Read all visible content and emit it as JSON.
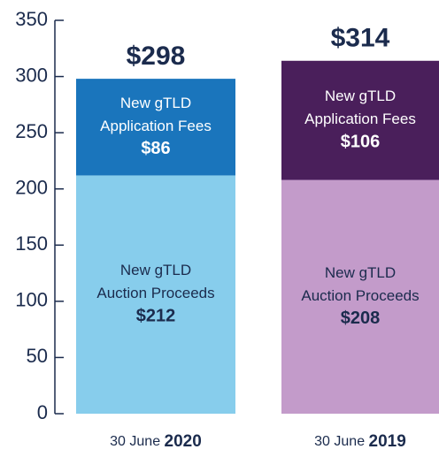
{
  "chart_data": {
    "type": "stacked_bar",
    "categories": [
      "30 June 2020",
      "30 June 2019"
    ],
    "series": [
      {
        "name": "New gTLD Auction Proceeds",
        "colors": [
          "#87cdec",
          "#c39bca"
        ],
        "values": [
          212,
          208
        ],
        "value_labels": [
          "$212",
          "$208"
        ]
      },
      {
        "name": "New gTLD Application Fees",
        "colors": [
          "#1a75bc",
          "#4a1f5b"
        ],
        "values": [
          86,
          106
        ],
        "value_labels": [
          "$86",
          "$106"
        ]
      }
    ],
    "totals": [
      298,
      314
    ],
    "total_labels": [
      "$298",
      "$314"
    ],
    "ylim": [
      0,
      350
    ],
    "yticks": [
      0,
      50,
      100,
      150,
      200,
      250,
      300,
      350
    ]
  }
}
